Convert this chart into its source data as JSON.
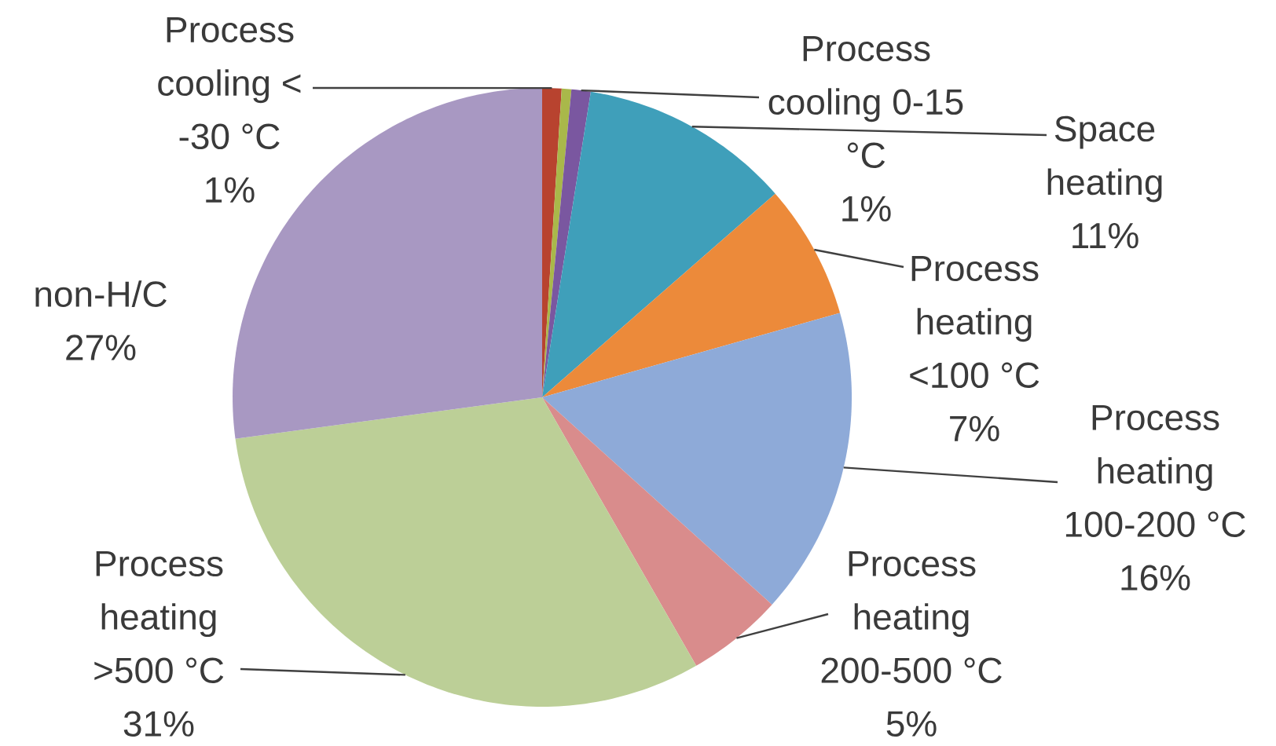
{
  "chart_data": {
    "type": "pie",
    "categories": [
      "Process cooling < -30 °C",
      null,
      "Process cooling 0-15 °C",
      "Space heating",
      "Process heating <100 °C",
      "Process heating 100-200 °C",
      "Process heating 200-500 °C",
      "Process heating >500 °C",
      "non-H/C"
    ],
    "values": [
      1,
      0.5,
      1,
      11,
      7,
      16,
      5,
      31,
      27
    ],
    "value_labels": [
      "1%",
      null,
      "1%",
      "11%",
      "7%",
      "16%",
      "5%",
      "31%",
      "27%"
    ],
    "colors": [
      "#b8432f",
      "#a9b84a",
      "#7a57a0",
      "#3f9fba",
      "#ec8a3a",
      "#8eaad8",
      "#d98c8c",
      "#bccf97",
      "#a898c2"
    ]
  }
}
